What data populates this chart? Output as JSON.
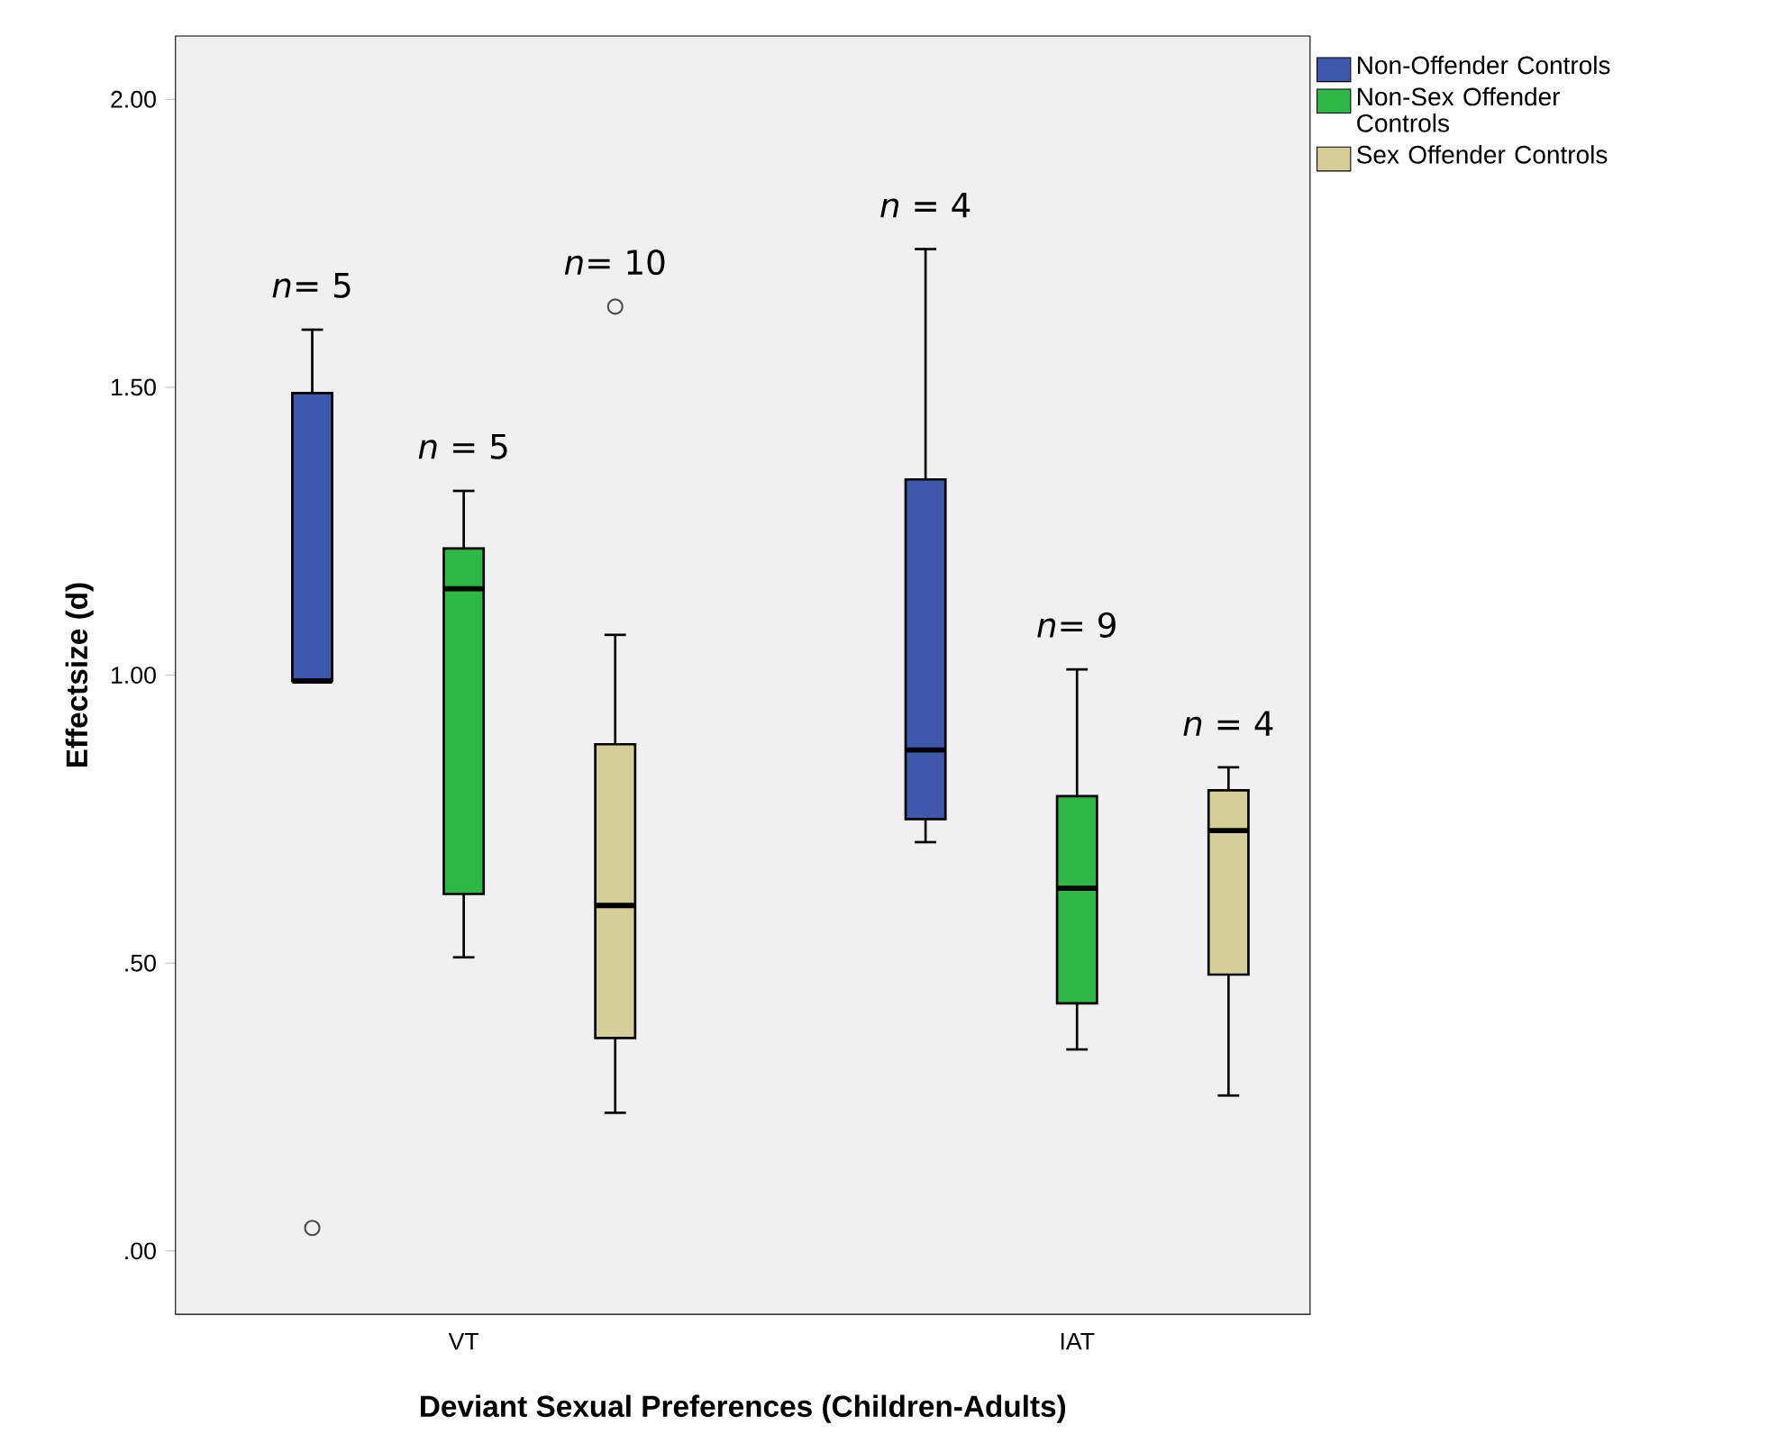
{
  "chart_data": {
    "type": "box",
    "xlabel": "Deviant Sexual Preferences (Children-Adults)",
    "ylabel": "Effectsize (d)",
    "categories": [
      "VT",
      "IAT"
    ],
    "ylim": [
      -0.11,
      2.11
    ],
    "yticks": [
      {
        "value": 0,
        "label": ".00"
      },
      {
        "value": 0.5,
        "label": ".50"
      },
      {
        "value": 1,
        "label": "1.00"
      },
      {
        "value": 1.5,
        "label": "1.50"
      },
      {
        "value": 2,
        "label": "2.00"
      }
    ],
    "legend": "right",
    "series": [
      {
        "name": "Non-Offender Controls",
        "color": "#3e58ac",
        "boxes": [
          {
            "low": 0.99,
            "q1": 0.99,
            "median": 0.99,
            "q3": 1.49,
            "high": 1.6,
            "outliers": [
              0.04
            ]
          },
          {
            "low": 0.71,
            "q1": 0.75,
            "median": 0.87,
            "q3": 1.34,
            "high": 1.74
          }
        ]
      },
      {
        "name": "Non-Sex Offender Controls",
        "color": "#2eb848",
        "boxes": [
          {
            "low": 0.51,
            "q1": 0.62,
            "median": 1.15,
            "q3": 1.22,
            "high": 1.32
          },
          {
            "low": 0.35,
            "q1": 0.43,
            "median": 0.63,
            "q3": 0.79,
            "high": 1.01
          }
        ]
      },
      {
        "name": "Sex Offender Controls",
        "color": "#d3ce97",
        "boxes": [
          {
            "low": 0.24,
            "q1": 0.37,
            "median": 0.6,
            "q3": 0.88,
            "high": 1.07,
            "outliers": [
              1.64
            ]
          },
          {
            "low": 0.27,
            "q1": 0.48,
            "median": 0.73,
            "q3": 0.8,
            "high": 0.84
          }
        ]
      }
    ],
    "annotations": [
      "*n*= 5",
      "*n* = 5",
      "*n*= 10",
      "*n* = 4",
      "*n*= 9",
      "*n* = 4"
    ]
  }
}
